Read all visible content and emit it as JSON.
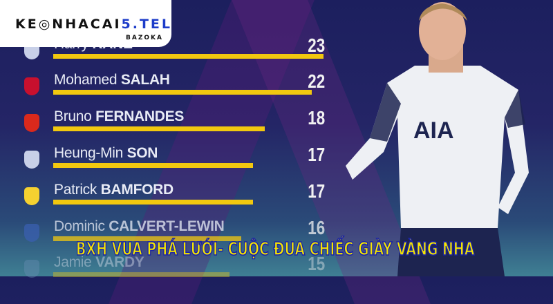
{
  "brand": {
    "logo_text_black": "KE",
    "logo_text_black2": "NHACAI",
    "logo_text_blue": "5.TEL",
    "sub": "BAZOKA"
  },
  "title": "BXH VUA PHÁ LƯỚI- CUỘC ĐUA CHIẾC GIÀY VÀNG NHA",
  "max_goals": 23,
  "players": [
    {
      "first": "Harry",
      "last": "KANE",
      "goals": 23,
      "club_icon": "tottenham-crest",
      "color": "#c8d0e8"
    },
    {
      "first": "Mohamed",
      "last": "SALAH",
      "goals": 22,
      "club_icon": "liverpool-crest",
      "color": "#c8102e"
    },
    {
      "first": "Bruno",
      "last": "FERNANDES",
      "goals": 18,
      "club_icon": "manchester-united-crest",
      "color": "#da291c"
    },
    {
      "first": "Heung-Min",
      "last": "SON",
      "goals": 17,
      "club_icon": "tottenham-crest",
      "color": "#c8d0e8"
    },
    {
      "first": "Patrick",
      "last": "BAMFORD",
      "goals": 17,
      "club_icon": "leeds-crest",
      "color": "#f5d130"
    },
    {
      "first": "Dominic",
      "last": "CALVERT-LEWIN",
      "goals": 16,
      "club_icon": "everton-crest",
      "color": "#3a5fb0"
    },
    {
      "first": "Jamie",
      "last": "VARDY",
      "goals": 15,
      "club_icon": "leicester-crest",
      "color": "#6a8fb5"
    }
  ]
}
